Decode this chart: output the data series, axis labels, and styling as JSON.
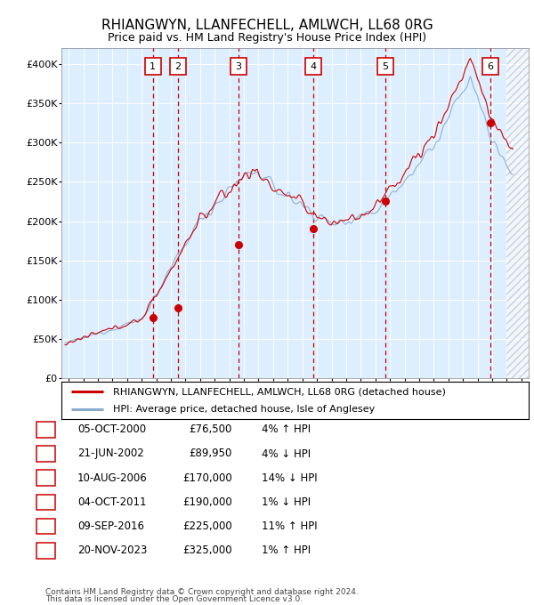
{
  "title": "RHIANGWYN, LLANFECHELL, AMLWCH, LL68 0RG",
  "subtitle": "Price paid vs. HM Land Registry's House Price Index (HPI)",
  "legend_line1": "RHIANGWYN, LLANFECHELL, AMLWCH, LL68 0RG (detached house)",
  "legend_line2": "HPI: Average price, detached house, Isle of Anglesey",
  "footer1": "Contains HM Land Registry data © Crown copyright and database right 2024.",
  "footer2": "This data is licensed under the Open Government Licence v3.0.",
  "sales": [
    {
      "num": 1,
      "date_x": 2000.75,
      "price": 76500,
      "pct": "4%",
      "dir": "↑",
      "label_date": "05-OCT-2000"
    },
    {
      "num": 2,
      "date_x": 2002.47,
      "price": 89950,
      "pct": "4%",
      "dir": "↓",
      "label_date": "21-JUN-2002"
    },
    {
      "num": 3,
      "date_x": 2006.61,
      "price": 170000,
      "pct": "14%",
      "dir": "↓",
      "label_date": "10-AUG-2006"
    },
    {
      "num": 4,
      "date_x": 2011.75,
      "price": 190000,
      "pct": "1%",
      "dir": "↓",
      "label_date": "04-OCT-2011"
    },
    {
      "num": 5,
      "date_x": 2016.69,
      "price": 225000,
      "pct": "11%",
      "dir": "↑",
      "label_date": "09-SEP-2016"
    },
    {
      "num": 6,
      "date_x": 2023.89,
      "price": 325000,
      "pct": "1%",
      "dir": "↑",
      "label_date": "20-NOV-2023"
    }
  ],
  "vline_dates": [
    2000.75,
    2002.47,
    2006.61,
    2011.75,
    2016.69,
    2023.89
  ],
  "price_color": "#cc0000",
  "hpi_color": "#88aacc",
  "vline_color": "#cc0000",
  "box_color": "#cc0000",
  "background_color": "#ddeeff",
  "ylim": [
    0,
    420000
  ],
  "xlim": [
    1994.5,
    2026.5
  ],
  "yticks": [
    0,
    50000,
    100000,
    150000,
    200000,
    250000,
    300000,
    350000,
    400000
  ],
  "ytick_labels": [
    "£0",
    "£50K",
    "£100K",
    "£150K",
    "£200K",
    "£250K",
    "£300K",
    "£350K",
    "£400K"
  ],
  "xticks": [
    1995,
    1996,
    1997,
    1998,
    1999,
    2000,
    2001,
    2002,
    2003,
    2004,
    2005,
    2006,
    2007,
    2008,
    2009,
    2010,
    2011,
    2012,
    2013,
    2014,
    2015,
    2016,
    2017,
    2018,
    2019,
    2020,
    2021,
    2022,
    2023,
    2024,
    2025,
    2026
  ],
  "table_rows": [
    [
      "1",
      "05-OCT-2000",
      "£76,500",
      "4% ↑ HPI"
    ],
    [
      "2",
      "21-JUN-2002",
      "£89,950",
      "4% ↓ HPI"
    ],
    [
      "3",
      "10-AUG-2006",
      "£170,000",
      "14% ↓ HPI"
    ],
    [
      "4",
      "04-OCT-2011",
      "£190,000",
      "1% ↓ HPI"
    ],
    [
      "5",
      "09-SEP-2016",
      "£225,000",
      "11% ↑ HPI"
    ],
    [
      "6",
      "20-NOV-2023",
      "£325,000",
      "1% ↑ HPI"
    ]
  ]
}
